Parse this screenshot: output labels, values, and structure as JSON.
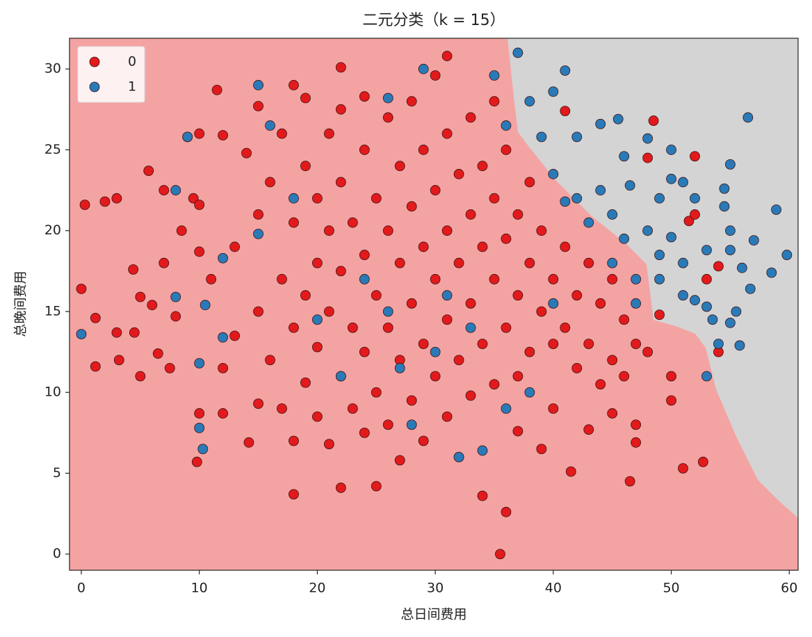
{
  "chart_data": {
    "type": "scatter",
    "title": "二元分类（k = 15）",
    "x_label": "总日间费用",
    "y_label": "总晚间费用",
    "xlim": [
      -1,
      60.75
    ],
    "ylim": [
      -1,
      31.9
    ],
    "xticks": [
      0,
      10,
      20,
      30,
      40,
      50,
      60
    ],
    "yticks": [
      0,
      5,
      10,
      15,
      20,
      25,
      30
    ],
    "legend": "upper left",
    "series": [
      {
        "name": "0",
        "color": "#e31a1c",
        "x": [
          0,
          0.3,
          1.2,
          1.2,
          2,
          3,
          3,
          3.2,
          4.4,
          4.5,
          5,
          5,
          5.7,
          6,
          6.5,
          7,
          7,
          7.5,
          8,
          8.5,
          9,
          9.5,
          10,
          10,
          10,
          10,
          9.8,
          11,
          11.5,
          12,
          12,
          12,
          13,
          13,
          14,
          14.2,
          15,
          15,
          15,
          15,
          16,
          16,
          17,
          17,
          17,
          18,
          18,
          18,
          18,
          18,
          19,
          19,
          19,
          19,
          20,
          20,
          20,
          20,
          21,
          21,
          21,
          21,
          22,
          22,
          22,
          22,
          22,
          22,
          23,
          23,
          23,
          24,
          24,
          24,
          24,
          24,
          25,
          25,
          25,
          25,
          26,
          26,
          26,
          26,
          27,
          27,
          27,
          27,
          28,
          28,
          28,
          28,
          29,
          29,
          29,
          29,
          30,
          30,
          30,
          30,
          31,
          31,
          31,
          31,
          31,
          32,
          32,
          32,
          32,
          33,
          33,
          33,
          33,
          34,
          34,
          34,
          34,
          35,
          35,
          35,
          35,
          35.5,
          36,
          36,
          36,
          36,
          37,
          37,
          37,
          37,
          38,
          38,
          38,
          39,
          39,
          39,
          40,
          40,
          40,
          41,
          41,
          41,
          41.5,
          42,
          42,
          43,
          43,
          43,
          44,
          44,
          45,
          45,
          45,
          46,
          46,
          46.5,
          47,
          47,
          47,
          48,
          48.5,
          48,
          49,
          50,
          50,
          51,
          51.5,
          52,
          52,
          52.7,
          53,
          54,
          54
        ],
        "values": [
          16.4,
          21.6,
          14.6,
          11.6,
          21.8,
          22,
          13.7,
          12,
          17.6,
          13.7,
          15.9,
          11,
          23.7,
          15.4,
          12.4,
          22.5,
          18,
          11.5,
          14.7,
          20,
          25.8,
          22,
          26,
          21.6,
          18.7,
          8.7,
          5.7,
          17,
          28.7,
          25.9,
          11.5,
          8.7,
          19,
          13.5,
          24.8,
          6.9,
          27.7,
          21,
          15,
          9.3,
          23,
          12,
          26,
          17,
          9,
          29,
          20.5,
          14,
          7,
          3.7,
          28.2,
          24,
          16,
          10.6,
          22,
          18,
          12.8,
          8.5,
          26,
          20,
          15,
          6.8,
          30.1,
          27.5,
          23,
          17.5,
          11,
          4.1,
          20.5,
          14,
          9,
          28.3,
          25,
          18.5,
          12.5,
          7.5,
          22,
          16,
          10,
          4.2,
          27,
          20,
          14,
          8,
          24,
          18,
          12,
          5.8,
          28,
          21.5,
          15.5,
          9.5,
          25,
          19,
          13,
          7,
          29.6,
          22.5,
          17,
          11,
          30.8,
          26,
          20,
          14.5,
          8.5,
          23.5,
          18,
          12,
          6,
          27,
          21,
          15.5,
          9.8,
          24,
          19,
          13,
          3.6,
          28,
          22,
          17,
          10.5,
          0,
          25,
          19.5,
          14,
          2.6,
          21,
          16,
          11,
          7.6,
          23,
          18,
          12.5,
          20,
          15,
          6.5,
          17,
          13,
          9,
          27.4,
          19,
          14,
          5.1,
          16,
          11.5,
          18,
          13,
          7.7,
          15.5,
          10.5,
          17,
          12,
          8.7,
          14.5,
          11,
          4.5,
          13,
          8,
          6.9,
          24.5,
          26.8,
          12.5,
          14.8,
          11,
          9.5,
          5.3,
          20.6,
          24.6,
          21,
          5.7,
          17,
          12.5,
          17.8
        ]
      },
      {
        "name": "1",
        "color": "#2a7ab8",
        "x": [
          0,
          8,
          8,
          9,
          10,
          10,
          10.3,
          10.5,
          12,
          12,
          15,
          15,
          16,
          18,
          20,
          22,
          24,
          26,
          26,
          27,
          28,
          29,
          30,
          31,
          32,
          33,
          34,
          35,
          36,
          36,
          37,
          38,
          38,
          39,
          40,
          40,
          40,
          41,
          41,
          42,
          42,
          43,
          44,
          44,
          45,
          45,
          45.5,
          46,
          46,
          46.5,
          47,
          47,
          48,
          48,
          49,
          49,
          49,
          50,
          50,
          50,
          51,
          51,
          51,
          52,
          52,
          53,
          53,
          53,
          53.5,
          54,
          54.5,
          54.5,
          55,
          55,
          55,
          55,
          55.5,
          55.8,
          56,
          56.5,
          56.7,
          57,
          58.5,
          58.9,
          59.8
        ],
        "values": [
          13.6,
          22.5,
          15.9,
          25.8,
          11.8,
          7.8,
          6.5,
          15.4,
          13.4,
          18.3,
          29,
          19.8,
          26.5,
          22,
          14.5,
          11,
          17,
          28.2,
          15,
          11.5,
          8,
          30,
          12.5,
          16,
          6,
          14,
          6.4,
          29.6,
          26.5,
          9,
          31,
          28,
          10,
          25.8,
          28.6,
          23.5,
          15.5,
          29.9,
          21.8,
          25.8,
          22,
          20.5,
          26.6,
          22.5,
          21,
          18,
          26.9,
          24.6,
          19.5,
          22.8,
          17,
          15.5,
          25.7,
          20,
          22,
          18.5,
          17,
          25,
          23.2,
          19.6,
          18,
          16,
          23,
          22,
          15.7,
          18.8,
          15.3,
          11,
          14.5,
          13,
          22.6,
          21.5,
          24.1,
          20,
          18.8,
          14.3,
          15,
          12.9,
          17.7,
          27,
          16.4,
          19.4,
          17.4,
          21.3,
          18.5
        ]
      }
    ]
  }
}
